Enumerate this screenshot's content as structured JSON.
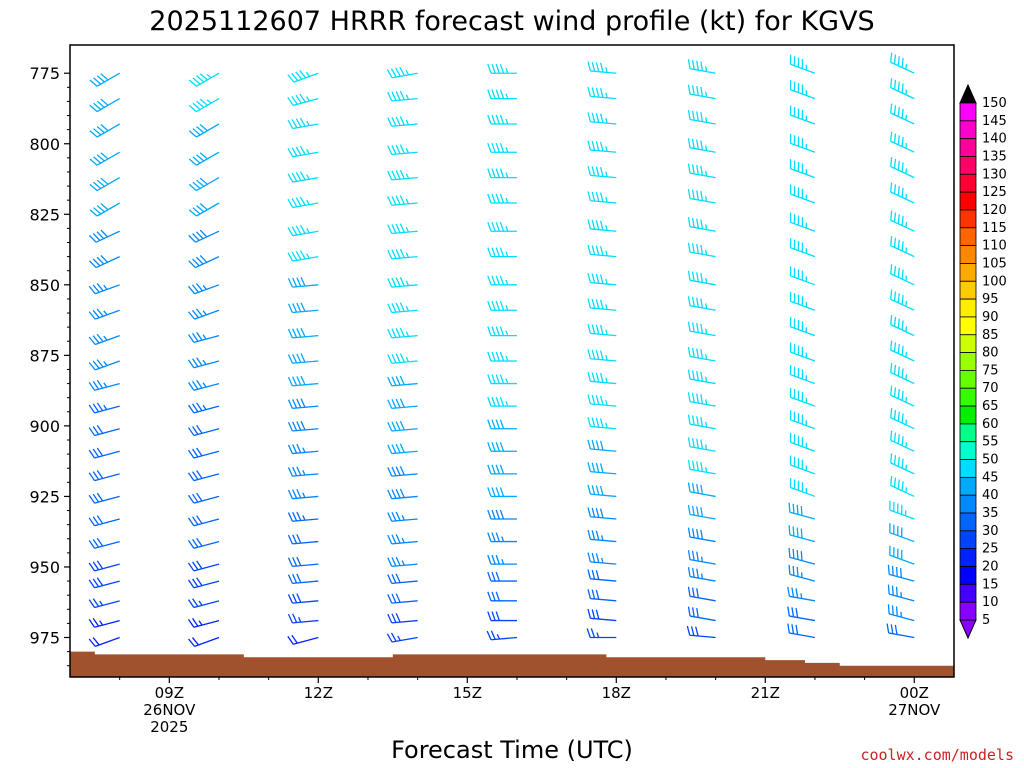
{
  "chart_data": {
    "type": "wind_barb_time_height",
    "title": "2025112607 HRRR forecast wind profile (kt) for KGVS",
    "xlabel": "Forecast Time (UTC)",
    "ylabel": "",
    "y_axis_label_units": "hPa",
    "ylim": [
      765,
      989
    ],
    "xlim": [
      7.0,
      24.8
    ],
    "yticks": [
      {
        "value": 775,
        "label": "775"
      },
      {
        "value": 800,
        "label": "800"
      },
      {
        "value": 825,
        "label": "825"
      },
      {
        "value": 850,
        "label": "850"
      },
      {
        "value": 875,
        "label": "875"
      },
      {
        "value": 900,
        "label": "900"
      },
      {
        "value": 925,
        "label": "925"
      },
      {
        "value": 950,
        "label": "950"
      },
      {
        "value": 975,
        "label": "975"
      }
    ],
    "xticks": [
      {
        "value": 9,
        "lines": [
          "09Z",
          "26NOV",
          "2025"
        ]
      },
      {
        "value": 12,
        "lines": [
          "12Z"
        ]
      },
      {
        "value": 15,
        "lines": [
          "15Z"
        ]
      },
      {
        "value": 18,
        "lines": [
          "18Z"
        ]
      },
      {
        "value": 21,
        "lines": [
          "21Z"
        ]
      },
      {
        "value": 24,
        "lines": [
          "00Z",
          "27NOV"
        ]
      }
    ],
    "times": [
      8,
      10,
      12,
      14,
      16,
      18,
      20,
      22,
      24
    ],
    "pressure_levels": [
      775,
      784,
      793,
      803,
      812,
      821,
      831,
      840,
      850,
      859,
      868,
      877,
      885,
      893,
      901,
      909,
      917,
      925,
      933,
      941,
      949,
      955,
      962,
      969,
      975
    ],
    "profiles": [
      {
        "time": 8,
        "start_level": 775,
        "speed": [
          40,
          40,
          40,
          40,
          40,
          40,
          38,
          38,
          35,
          35,
          35,
          35,
          35,
          34,
          32,
          32,
          32,
          32,
          30,
          30,
          28,
          28,
          25,
          24,
          20
        ],
        "direction": [
          240,
          240,
          240,
          240,
          240,
          240,
          245,
          245,
          250,
          250,
          250,
          250,
          255,
          255,
          255,
          255,
          255,
          255,
          255,
          255,
          255,
          255,
          255,
          255,
          250
        ]
      },
      {
        "time": 10,
        "start_level": 775,
        "speed": [
          45,
          45,
          42,
          40,
          40,
          40,
          38,
          38,
          36,
          35,
          35,
          35,
          35,
          34,
          32,
          32,
          32,
          32,
          30,
          30,
          28,
          28,
          25,
          24,
          20
        ],
        "direction": [
          240,
          240,
          240,
          240,
          240,
          240,
          245,
          245,
          250,
          250,
          255,
          255,
          255,
          255,
          255,
          255,
          255,
          255,
          255,
          255,
          255,
          255,
          255,
          255,
          250
        ]
      },
      {
        "time": 12,
        "start_level": 775,
        "speed": [
          45,
          45,
          45,
          45,
          45,
          45,
          45,
          45,
          42,
          42,
          40,
          40,
          40,
          38,
          38,
          36,
          35,
          35,
          34,
          32,
          32,
          30,
          28,
          25,
          22
        ],
        "direction": [
          250,
          255,
          260,
          260,
          260,
          260,
          260,
          260,
          265,
          265,
          265,
          265,
          265,
          265,
          265,
          265,
          265,
          265,
          265,
          265,
          265,
          265,
          265,
          265,
          255
        ]
      },
      {
        "time": 14,
        "start_level": 775,
        "speed": [
          45,
          45,
          45,
          45,
          45,
          45,
          45,
          45,
          45,
          45,
          45,
          45,
          42,
          42,
          40,
          40,
          38,
          38,
          36,
          35,
          35,
          32,
          30,
          28,
          25
        ],
        "direction": [
          260,
          265,
          265,
          265,
          265,
          265,
          265,
          265,
          265,
          265,
          265,
          265,
          265,
          265,
          265,
          265,
          265,
          265,
          265,
          265,
          265,
          265,
          265,
          265,
          260
        ]
      },
      {
        "time": 16,
        "start_level": 775,
        "speed": [
          45,
          45,
          45,
          45,
          45,
          45,
          45,
          45,
          45,
          45,
          45,
          45,
          45,
          45,
          42,
          42,
          40,
          40,
          38,
          36,
          35,
          32,
          30,
          28,
          25
        ],
        "direction": [
          270,
          270,
          270,
          270,
          270,
          270,
          270,
          270,
          270,
          270,
          270,
          270,
          270,
          270,
          270,
          270,
          270,
          270,
          270,
          270,
          270,
          270,
          270,
          270,
          265
        ]
      },
      {
        "time": 18,
        "start_level": 775,
        "speed": [
          45,
          45,
          45,
          45,
          45,
          45,
          45,
          45,
          45,
          45,
          45,
          45,
          45,
          45,
          45,
          42,
          42,
          40,
          38,
          36,
          35,
          32,
          30,
          28,
          25
        ],
        "direction": [
          275,
          275,
          275,
          275,
          275,
          275,
          275,
          275,
          275,
          275,
          275,
          275,
          275,
          275,
          275,
          275,
          275,
          275,
          275,
          275,
          275,
          275,
          275,
          275,
          270
        ]
      },
      {
        "time": 20,
        "start_level": 775,
        "speed": [
          45,
          45,
          45,
          45,
          45,
          45,
          45,
          45,
          45,
          45,
          45,
          45,
          45,
          45,
          45,
          45,
          45,
          42,
          40,
          38,
          36,
          35,
          32,
          30,
          28
        ],
        "direction": [
          280,
          280,
          280,
          280,
          280,
          280,
          280,
          280,
          280,
          280,
          280,
          280,
          280,
          280,
          280,
          280,
          280,
          280,
          280,
          280,
          280,
          280,
          280,
          280,
          275
        ]
      },
      {
        "time": 22,
        "start_level": 775,
        "speed": [
          45,
          45,
          45,
          45,
          45,
          45,
          45,
          45,
          45,
          45,
          45,
          45,
          45,
          45,
          45,
          45,
          45,
          45,
          42,
          40,
          38,
          36,
          35,
          32,
          30
        ],
        "direction": [
          290,
          290,
          290,
          290,
          290,
          290,
          290,
          290,
          290,
          290,
          290,
          290,
          290,
          290,
          290,
          290,
          290,
          290,
          285,
          285,
          285,
          285,
          280,
          280,
          280
        ]
      },
      {
        "time": 24,
        "start_level": 775,
        "speed": [
          45,
          45,
          45,
          45,
          45,
          45,
          45,
          45,
          45,
          45,
          45,
          45,
          45,
          45,
          45,
          45,
          45,
          45,
          45,
          42,
          40,
          38,
          36,
          35,
          32
        ],
        "direction": [
          295,
          295,
          295,
          295,
          295,
          295,
          295,
          295,
          295,
          295,
          295,
          295,
          295,
          295,
          295,
          295,
          295,
          295,
          290,
          290,
          290,
          285,
          285,
          285,
          280
        ]
      }
    ],
    "surface_pressure": {
      "times": [
        7.0,
        7.5,
        10.5,
        13.5,
        17.8,
        21.0,
        21.8,
        22.5,
        24.5,
        24.8
      ],
      "pressure": [
        980,
        981,
        982,
        981,
        982,
        983,
        984,
        985,
        985,
        986
      ]
    },
    "colorbar": {
      "label_values": [
        150,
        145,
        140,
        135,
        130,
        125,
        120,
        115,
        110,
        105,
        100,
        95,
        90,
        85,
        80,
        75,
        70,
        65,
        60,
        55,
        50,
        45,
        40,
        35,
        30,
        25,
        20,
        15,
        10,
        5
      ],
      "colors": [
        "#000000",
        "#ff00ff",
        "#ff00cc",
        "#ff0099",
        "#ff0066",
        "#ff0033",
        "#ff0000",
        "#ff3300",
        "#ff6600",
        "#ff8800",
        "#ffaa00",
        "#ffcc00",
        "#ffee00",
        "#ffff00",
        "#ccff00",
        "#99ff00",
        "#66ff00",
        "#33ff00",
        "#00ee00",
        "#00ff88",
        "#00ffcc",
        "#00ddff",
        "#00aaff",
        "#0088ff",
        "#0066ff",
        "#0044ff",
        "#0022ff",
        "#0000ff",
        "#4400ff",
        "#8800ff"
      ]
    },
    "ground_color": "#a0522d"
  },
  "credit": "coolwx.com/models"
}
